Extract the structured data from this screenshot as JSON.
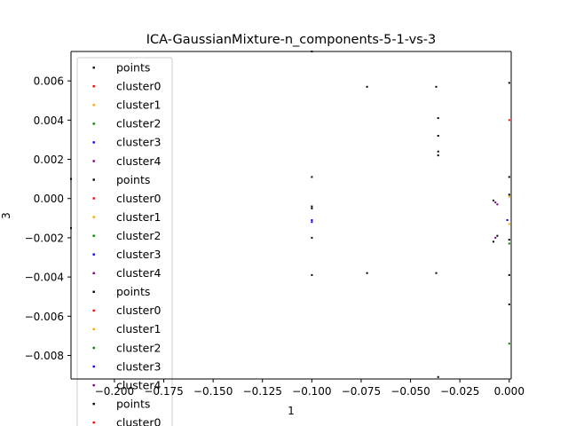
{
  "chart_data": {
    "type": "scatter",
    "title": "ICA-GaussianMixture-n_components-5-1-vs-3",
    "xlabel": "1",
    "ylabel": "3",
    "xlim": [
      -0.222,
      0.001
    ],
    "ylim": [
      -0.0092,
      0.0075
    ],
    "xticks": [
      -0.2,
      -0.175,
      -0.15,
      -0.125,
      -0.1,
      -0.075,
      -0.05,
      -0.025,
      0.0
    ],
    "xtick_labels": [
      "−0.200",
      "−0.175",
      "−0.150",
      "−0.125",
      "−0.100",
      "−0.075",
      "−0.050",
      "−0.025",
      "0.000"
    ],
    "yticks": [
      -0.008,
      -0.006,
      -0.004,
      -0.002,
      0.0,
      0.002,
      0.004,
      0.006
    ],
    "ytick_labels": [
      "−0.008",
      "−0.006",
      "−0.004",
      "−0.002",
      "0.000",
      "0.002",
      "0.004",
      "0.006"
    ],
    "grid": false,
    "legend_placement": "upper-left",
    "legend_entries": [
      {
        "label": "points",
        "color": "#000000"
      },
      {
        "label": "cluster0",
        "color": "#ff0000"
      },
      {
        "label": "cluster1",
        "color": "#ffa500"
      },
      {
        "label": "cluster2",
        "color": "#008000"
      },
      {
        "label": "cluster3",
        "color": "#0000ff"
      },
      {
        "label": "cluster4",
        "color": "#800080"
      },
      {
        "label": "points",
        "color": "#000000"
      },
      {
        "label": "cluster0",
        "color": "#ff0000"
      },
      {
        "label": "cluster1",
        "color": "#ffa500"
      },
      {
        "label": "cluster2",
        "color": "#008000"
      },
      {
        "label": "cluster3",
        "color": "#0000ff"
      },
      {
        "label": "cluster4",
        "color": "#800080"
      },
      {
        "label": "points",
        "color": "#000000"
      },
      {
        "label": "cluster0",
        "color": "#ff0000"
      },
      {
        "label": "cluster1",
        "color": "#ffa500"
      },
      {
        "label": "cluster2",
        "color": "#008000"
      },
      {
        "label": "cluster3",
        "color": "#0000ff"
      },
      {
        "label": "cluster4",
        "color": "#800080"
      },
      {
        "label": "points",
        "color": "#000000"
      },
      {
        "label": "cluster0",
        "color": "#ff0000"
      }
    ],
    "series": [
      {
        "name": "points",
        "color": "#000000",
        "points": [
          [
            -0.1,
            0.0075
          ],
          [
            -0.072,
            0.0057
          ],
          [
            -0.037,
            0.0057
          ],
          [
            -0.036,
            0.0041
          ],
          [
            -0.036,
            0.0032
          ],
          [
            -0.036,
            0.0024
          ],
          [
            -0.036,
            0.0022
          ],
          [
            -0.1,
            0.0011
          ],
          [
            -0.1,
            -0.0004
          ],
          [
            -0.1,
            -0.0005
          ],
          [
            -0.1,
            -0.002
          ],
          [
            -0.1,
            -0.0039
          ],
          [
            -0.072,
            -0.0038
          ],
          [
            -0.037,
            -0.0038
          ],
          [
            -0.036,
            -0.0091
          ],
          [
            -0.008,
            -0.0001
          ],
          [
            -0.008,
            -0.0022
          ],
          [
            -0.006,
            -0.0019
          ],
          [
            0.0,
            0.0059
          ],
          [
            0.0,
            0.0011
          ],
          [
            0.0,
            0.0002
          ],
          [
            0.0,
            -0.0021
          ],
          [
            0.0,
            -0.0039
          ],
          [
            0.0,
            -0.0054
          ],
          [
            -0.222,
            0.001
          ],
          [
            -0.222,
            -0.0015
          ]
        ]
      },
      {
        "name": "cluster0",
        "color": "#ff0000",
        "points": [
          [
            0.0,
            0.004
          ]
        ]
      },
      {
        "name": "cluster1",
        "color": "#ffa500",
        "points": [
          [
            0.0,
            0.0001
          ],
          [
            0.0,
            -0.0013
          ]
        ]
      },
      {
        "name": "cluster2",
        "color": "#008000",
        "points": [
          [
            0.0,
            -0.0074
          ],
          [
            0.0,
            -0.0023
          ]
        ]
      },
      {
        "name": "cluster3",
        "color": "#0000ff",
        "points": [
          [
            -0.1,
            -0.0011
          ],
          [
            -0.1,
            -0.0012
          ],
          [
            -0.001,
            -0.0011
          ]
        ]
      },
      {
        "name": "cluster4",
        "color": "#800080",
        "points": [
          [
            -0.006,
            -0.0003
          ],
          [
            -0.007,
            -0.0002
          ],
          [
            -0.007,
            -0.002
          ]
        ]
      }
    ]
  }
}
